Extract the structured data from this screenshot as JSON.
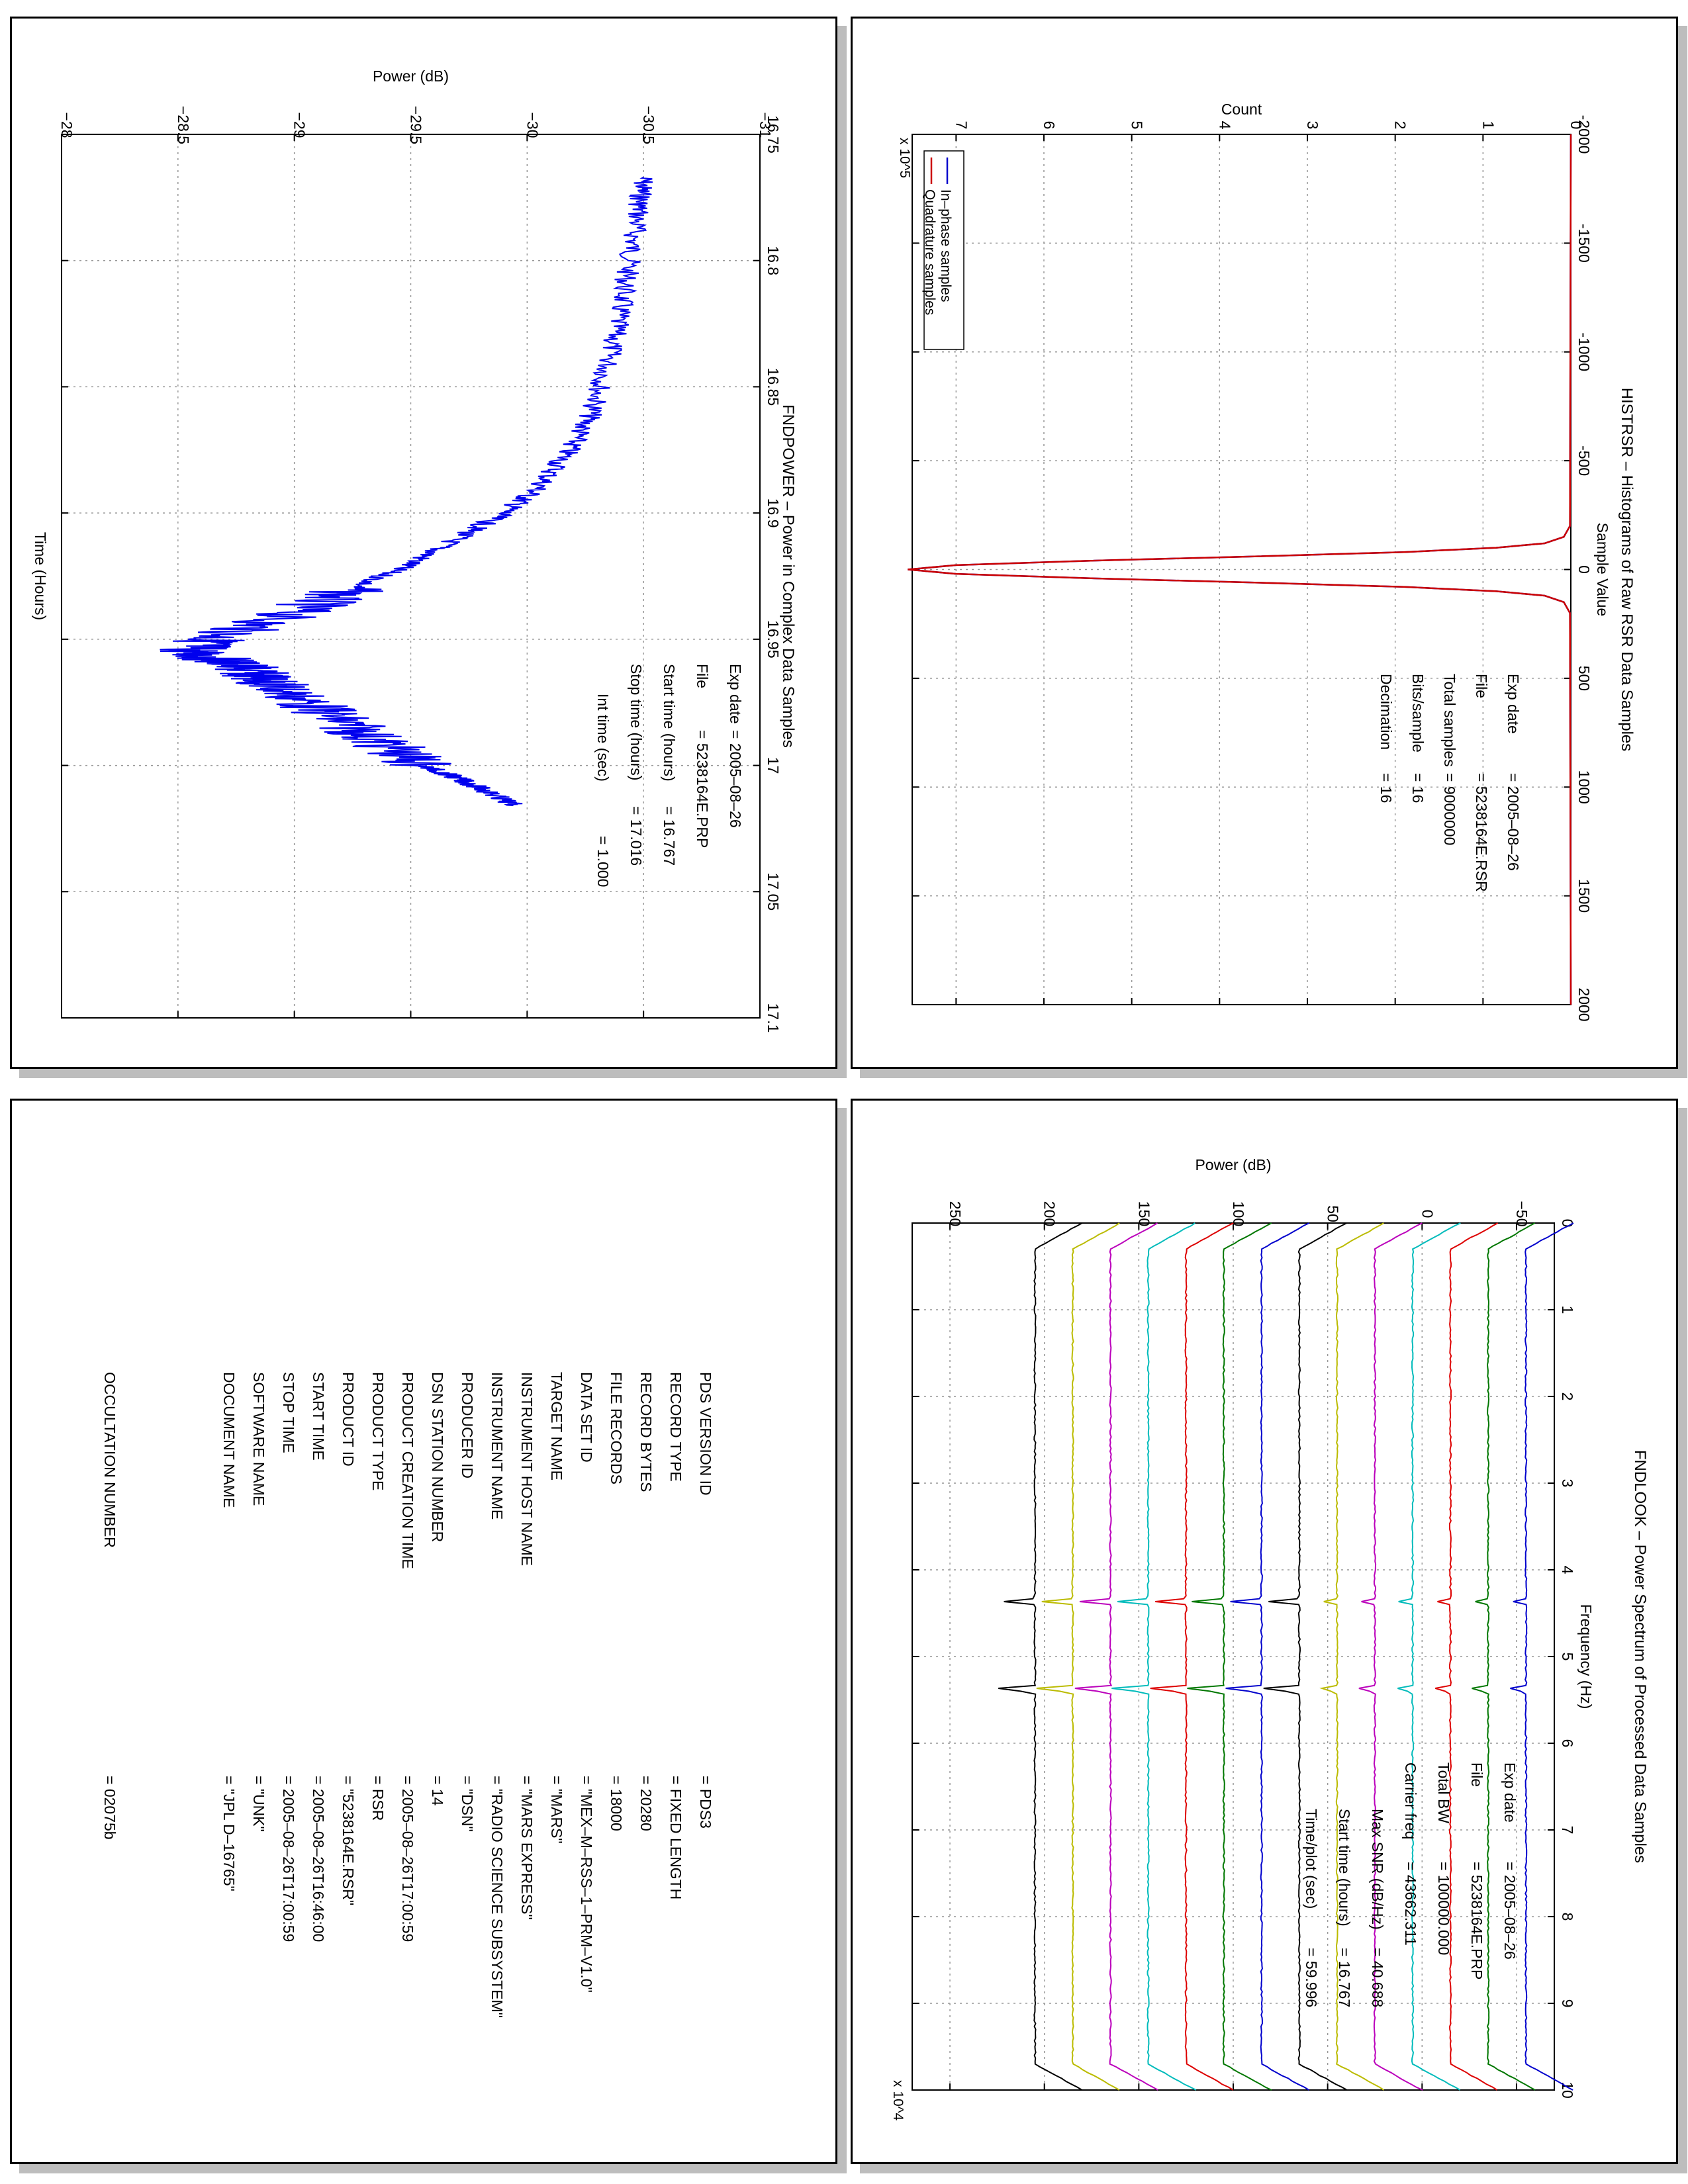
{
  "chart_data": [
    {
      "type": "line",
      "title": "HISTRSR – Histograms of Raw RSR Data Samples",
      "xlabel": "Sample Value",
      "ylabel": "Count",
      "xlim": [
        -2000,
        2000
      ],
      "ylim": [
        0,
        7.5
      ],
      "y_multiplier": "x 10^5",
      "x_ticks": [
        -2000,
        -1500,
        -1000,
        -500,
        0,
        500,
        1000,
        1500,
        2000
      ],
      "y_ticks": [
        0,
        1,
        2,
        3,
        4,
        5,
        6,
        7
      ],
      "grid": true,
      "legend_position": "top-right",
      "series": [
        {
          "name": "In–phase samples",
          "color": "#0000cc",
          "x": [
            -2000,
            -200,
            -150,
            -120,
            -100,
            -80,
            -60,
            -40,
            -20,
            0,
            20,
            40,
            60,
            80,
            100,
            120,
            150,
            200,
            2000
          ],
          "values": [
            0,
            0.01,
            0.08,
            0.3,
            0.85,
            1.9,
            3.6,
            5.5,
            7.0,
            7.55,
            7.0,
            5.5,
            3.6,
            1.9,
            0.85,
            0.3,
            0.08,
            0.01,
            0
          ]
        },
        {
          "name": "Quadrature samples",
          "color": "#cc0000",
          "x": [
            -2000,
            -200,
            -150,
            -120,
            -100,
            -80,
            -60,
            -40,
            -20,
            0,
            20,
            40,
            60,
            80,
            100,
            120,
            150,
            200,
            2000
          ],
          "values": [
            0,
            0.01,
            0.08,
            0.3,
            0.85,
            1.9,
            3.6,
            5.5,
            7.0,
            7.55,
            7.0,
            5.5,
            3.6,
            1.9,
            0.85,
            0.3,
            0.08,
            0.01,
            0
          ]
        }
      ],
      "info": [
        {
          "key": "Exp date",
          "value": "= 2005–08–26"
        },
        {
          "key": "File",
          "value": "= 5238164E.RSR"
        },
        {
          "key": "Total samples",
          "value": "=   9000000"
        },
        {
          "key": "Bits/sample",
          "value": "=      16"
        },
        {
          "key": "Decimation",
          "value": "=     16"
        }
      ]
    },
    {
      "type": "line",
      "title": "FNDPOWER – Power in Complex Data Samples",
      "xlabel": "Time (Hours)",
      "ylabel": "Power (dB)",
      "xlim": [
        16.75,
        17.1
      ],
      "ylim": [
        -31,
        -28
      ],
      "x_ticks": [
        "16.75",
        "16.8",
        "16.85",
        "16.9",
        "16.95",
        "17",
        "17.05",
        "17.1"
      ],
      "y_ticks": [
        "−31",
        "−30.5",
        "−30",
        "−29.5",
        "−29",
        "−28.5",
        "−28"
      ],
      "grid": true,
      "series": [
        {
          "color": "#0000ee",
          "x": [
            16.767,
            16.78,
            16.8,
            16.82,
            16.84,
            16.86,
            16.875,
            16.89,
            16.9,
            16.91,
            16.92,
            16.93,
            16.94,
            16.95,
            16.955,
            16.96,
            16.965,
            16.97,
            16.98,
            16.99,
            17.0,
            17.005,
            17.01,
            17.016
          ],
          "values": [
            -30.5,
            -30.48,
            -30.44,
            -30.4,
            -30.35,
            -30.28,
            -30.18,
            -30.05,
            -29.9,
            -29.7,
            -29.5,
            -29.25,
            -28.98,
            -28.65,
            -28.55,
            -28.75,
            -28.85,
            -28.95,
            -29.15,
            -29.35,
            -29.55,
            -29.7,
            -29.82,
            -29.95
          ]
        }
      ],
      "info": [
        {
          "key": "Exp date",
          "value": "= 2005–08–26"
        },
        {
          "key": "File",
          "value": "= 5238164E.PRP"
        },
        {
          "key": "Start time (hours)",
          "value": "= 16.767"
        },
        {
          "key": "Stop time (hours)",
          "value": "= 17.016"
        },
        {
          "key": "Int time (sec)",
          "value": "=     1.000"
        }
      ]
    },
    {
      "type": "line",
      "title": "FNDLOOK – Power Spectrum of Processed Data Samples",
      "xlabel": "Frequency (Hz)",
      "ylabel": "Power (dB)",
      "xlim": [
        0,
        100000
      ],
      "ylim": [
        -70,
        270
      ],
      "x_multiplier": "x 10^4",
      "x_ticks": [
        "0",
        "1",
        "2",
        "3",
        "4",
        "5",
        "6",
        "7",
        "8",
        "9",
        "10"
      ],
      "y_ticks": [
        "−50",
        "0",
        "50",
        "100",
        "150",
        "200",
        "250"
      ],
      "grid": true,
      "series_offsets_db": [
        -60,
        -40,
        -20,
        0,
        20,
        40,
        60,
        80,
        100,
        120,
        140,
        160,
        180
      ],
      "series_colors": [
        "#0000cc",
        "#007700",
        "#dd0000",
        "#00bbbb",
        "#bb00bb",
        "#bbbb00",
        "#000000",
        "#0000cc",
        "#007700",
        "#dd0000",
        "#00bbbb",
        "#bb00bb",
        "#bbbb00",
        "#000000"
      ],
      "baseline_db": 20,
      "peaks_hz": [
        43662,
        53750
      ],
      "info": [
        {
          "key": "Exp date",
          "value": "= 2005–08–26"
        },
        {
          "key": "File",
          "value": "= 5238164E.PRP"
        },
        {
          "key": "Total BW",
          "value": "=   100000.000"
        },
        {
          "key": "Carrier freq",
          "value": "=   43662.311"
        },
        {
          "key": "Max SNR (dB/Hz)",
          "value": "=    40.688"
        },
        {
          "key": "Start time (hours)",
          "value": "=   16.767"
        },
        {
          "key": "Time/plot (sec)",
          "value": "=    59.996"
        }
      ]
    }
  ],
  "label_table": {
    "rows": [
      {
        "key": "PDS VERSION ID",
        "value": "= PDS3"
      },
      {
        "key": "RECORD TYPE",
        "value": "= FIXED LENGTH"
      },
      {
        "key": "RECORD BYTES",
        "value": "= 20280"
      },
      {
        "key": "FILE RECORDS",
        "value": "= 18000"
      },
      {
        "key": "DATA SET ID",
        "value": "= \"MEX–M–RSS–1–PRM–V1.0\""
      },
      {
        "key": "TARGET NAME",
        "value": "= \"MARS\""
      },
      {
        "key": "INSTRUMENT HOST NAME",
        "value": "= \"MARS EXPRESS\""
      },
      {
        "key": "INSTRUMENT NAME",
        "value": "= \"RADIO SCIENCE SUBSYSTEM\""
      },
      {
        "key": "PRODUCER ID",
        "value": "= \"DSN\""
      },
      {
        "key": "DSN STATION NUMBER",
        "value": "= 14"
      },
      {
        "key": "PRODUCT CREATION TIME",
        "value": "= 2005–08–26T17:00:59"
      },
      {
        "key": "PRODUCT TYPE",
        "value": "= RSR"
      },
      {
        "key": "PRODUCT ID",
        "value": "= \"5238164E.RSR\""
      },
      {
        "key": "START TIME",
        "value": "= 2005–08–26T16:46:00"
      },
      {
        "key": "STOP TIME",
        "value": "= 2005–08–26T17:00:59"
      },
      {
        "key": "SOFTWARE NAME",
        "value": "= \"UNK\""
      },
      {
        "key": "DOCUMENT NAME",
        "value": "= \"JPL D–16765\""
      },
      {
        "key": "OCCULTATION NUMBER",
        "value": "= 02075b"
      }
    ]
  }
}
